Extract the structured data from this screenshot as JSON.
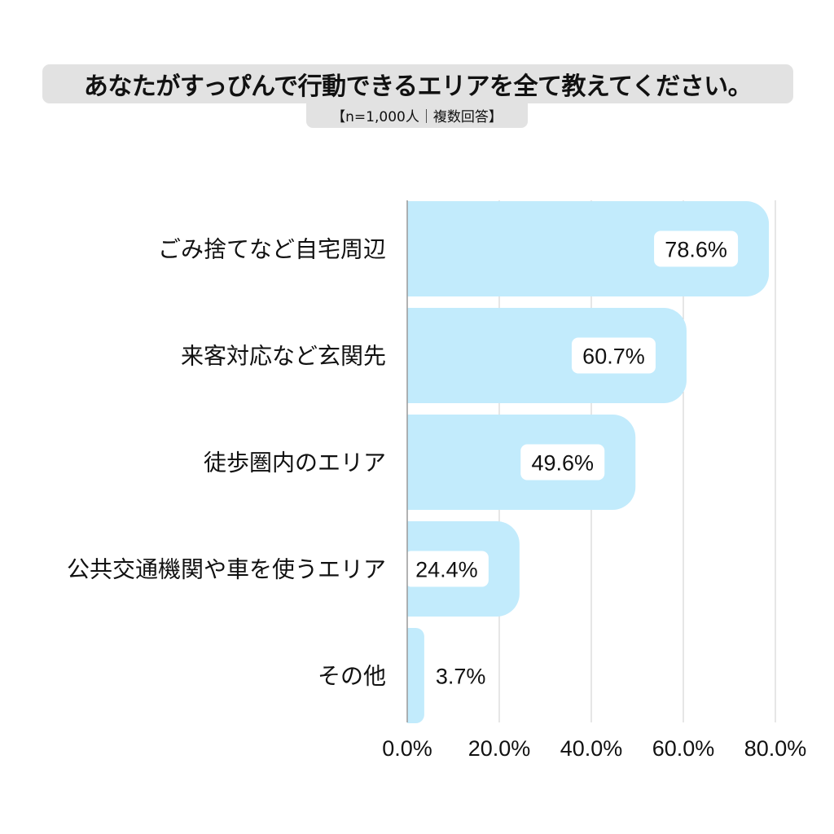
{
  "title": "あなたがすっぴんで行動できるエリアを全て教えてください。",
  "subtitle": "【n=1,000人｜複数回答】",
  "colors": {
    "bar": "#c2ebfc",
    "grid": "#cccccc",
    "axis": "#999999",
    "title_bg": "#e2e2e2",
    "label_bg": "#ffffff"
  },
  "chart_data": {
    "type": "bar",
    "orientation": "horizontal",
    "categories": [
      "ごみ捨てなど自宅周辺",
      "来客対応など玄関先",
      "徒歩圏内のエリア",
      "公共交通機関や車を使うエリア",
      "その他"
    ],
    "values": [
      78.6,
      60.7,
      49.6,
      24.4,
      3.7
    ],
    "value_labels": [
      "78.6%",
      "60.7%",
      "49.6%",
      "24.4%",
      "3.7%"
    ],
    "xlim": [
      0,
      80
    ],
    "ticks": [
      0,
      20,
      40,
      60,
      80
    ],
    "tick_labels": [
      "0.0%",
      "20.0%",
      "40.0%",
      "60.0%",
      "80.0%"
    ],
    "grid": true,
    "title": "あなたがすっぴんで行動できるエリアを全て教えてください。",
    "subtitle": "【n=1,000人｜複数回答】"
  }
}
